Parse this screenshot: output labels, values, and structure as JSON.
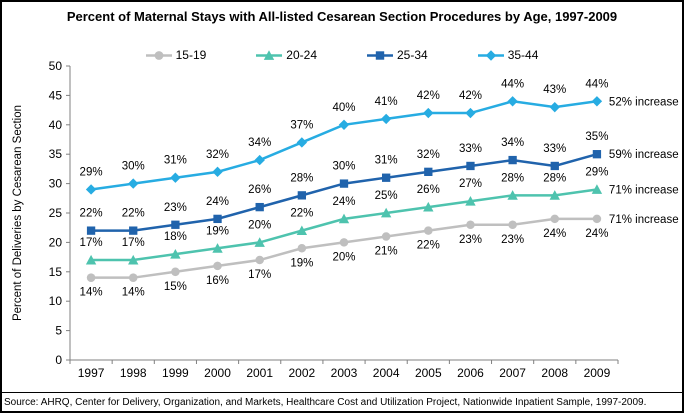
{
  "title": "Percent of Maternal Stays with All-listed Cesarean Section Procedures by Age, 1997-2009",
  "source": "Source: AHRQ, Center for Delivery, Organization, and Markets, Healthcare Cost and Utilization Project, Nationwide Inpatient Sample, 1997-2009.",
  "chart_data": {
    "type": "line",
    "title": "Percent of Maternal Stays with All-listed Cesarean Section Procedures by Age, 1997-2009",
    "xlabel": "",
    "ylabel": "Percent of Deliveries by Cesarean Section",
    "ylim": [
      0,
      50
    ],
    "ytick_step": 5,
    "grid": false,
    "legend_position": "top",
    "axis_color": "#808080",
    "label_color": "#000000",
    "categories": [
      1997,
      1998,
      1999,
      2000,
      2001,
      2002,
      2003,
      2004,
      2005,
      2006,
      2007,
      2008,
      2009
    ],
    "series": [
      {
        "name": "15-19",
        "color": "#BFBFBF",
        "marker": "circle",
        "label_position": "below",
        "annotation": "71% increase",
        "values": [
          14,
          14,
          15,
          16,
          17,
          19,
          20,
          21,
          22,
          23,
          23,
          24,
          24
        ],
        "labels": [
          "14%",
          "14%",
          "15%",
          "16%",
          "17%",
          "19%",
          "20%",
          "21%",
          "22%",
          "23%",
          "23%",
          "24%",
          "24%"
        ]
      },
      {
        "name": "20-24",
        "color": "#4EC3AE",
        "marker": "triangle",
        "label_position": "above",
        "annotation": "71% increase",
        "values": [
          17,
          17,
          18,
          19,
          20,
          22,
          24,
          25,
          26,
          27,
          28,
          28,
          29
        ],
        "labels": [
          "17%",
          "17%",
          "18%",
          "19%",
          "20%",
          "22%",
          "24%",
          "25%",
          "26%",
          "27%",
          "28%",
          "28%",
          "29%"
        ]
      },
      {
        "name": "25-34",
        "color": "#2063AC",
        "marker": "square",
        "label_position": "above",
        "annotation": "59% increase",
        "values": [
          22,
          22,
          23,
          24,
          26,
          28,
          30,
          31,
          32,
          33,
          34,
          33,
          35
        ],
        "labels": [
          "22%",
          "22%",
          "23%",
          "24%",
          "26%",
          "28%",
          "30%",
          "31%",
          "32%",
          "33%",
          "34%",
          "33%",
          "35%"
        ]
      },
      {
        "name": "35-44",
        "color": "#27ACE2",
        "marker": "diamond",
        "label_position": "above",
        "annotation": "52% increase",
        "values": [
          29,
          30,
          31,
          32,
          34,
          37,
          40,
          41,
          42,
          42,
          44,
          43,
          44
        ],
        "labels": [
          "29%",
          "30%",
          "31%",
          "32%",
          "34%",
          "37%",
          "40%",
          "41%",
          "42%",
          "42%",
          "44%",
          "43%",
          "44%"
        ]
      }
    ]
  }
}
